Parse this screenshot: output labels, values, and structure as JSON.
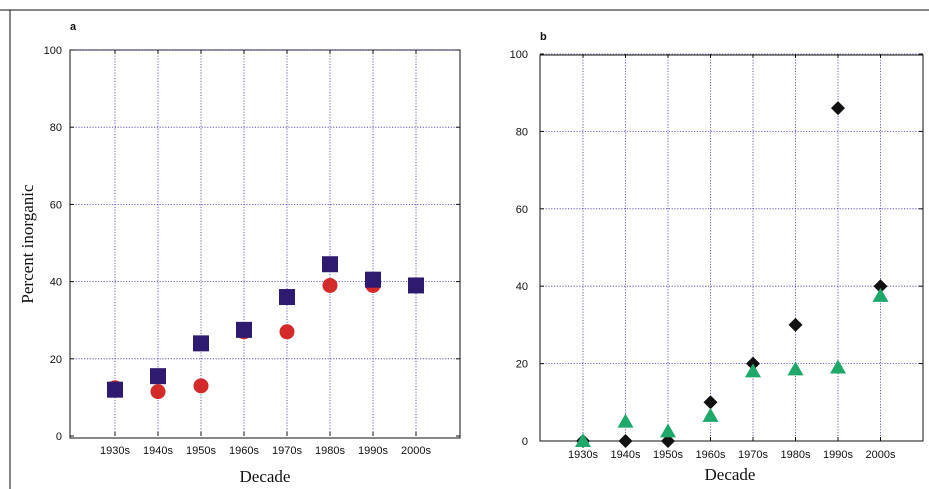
{
  "chart_data": [
    {
      "panel": "a",
      "type": "scatter",
      "categories": [
        "1930s",
        "1940s",
        "1950s",
        "1960s",
        "1970s",
        "1980s",
        "1990s",
        "2000s"
      ],
      "xlabel": "Decade",
      "ylabel": "Percent inorganic",
      "ylim": [
        0,
        100
      ],
      "yticks": [
        0,
        20,
        40,
        60,
        80,
        100
      ],
      "grid": true,
      "series": [
        {
          "marker": "circle",
          "color": "#d42a2a",
          "values": [
            12.5,
            11.5,
            13,
            27,
            27,
            39,
            39,
            null
          ]
        },
        {
          "marker": "square",
          "color": "#2e1a6e",
          "values": [
            12,
            15.5,
            24,
            27.5,
            36,
            44.5,
            40.5,
            39
          ]
        }
      ]
    },
    {
      "panel": "b",
      "type": "scatter",
      "categories": [
        "1930s",
        "1940s",
        "1950s",
        "1960s",
        "1970s",
        "1980s",
        "1990s",
        "2000s"
      ],
      "xlabel": "Decade",
      "ylabel": "",
      "ylim": [
        0,
        100
      ],
      "yticks": [
        0,
        20,
        40,
        60,
        80,
        100
      ],
      "grid": true,
      "series": [
        {
          "marker": "diamond",
          "color": "#111111",
          "values": [
            0,
            0,
            0,
            10,
            20,
            30,
            86,
            40
          ]
        },
        {
          "marker": "triangle",
          "color": "#1ea86a",
          "values": [
            0,
            5,
            2.5,
            6.5,
            18,
            18.5,
            19,
            37.5
          ]
        }
      ]
    }
  ]
}
